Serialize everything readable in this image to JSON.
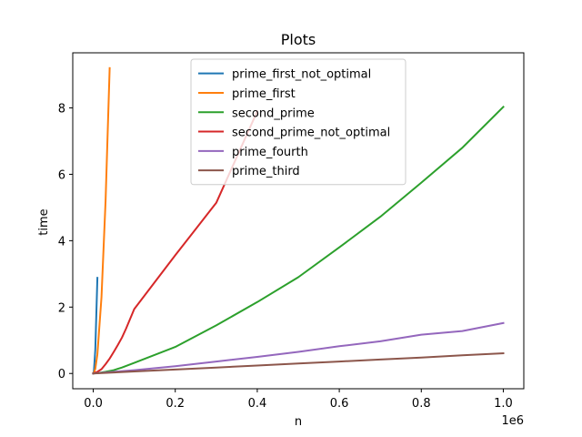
{
  "chart_data": {
    "type": "line",
    "title": "Plots",
    "xlabel": "n",
    "ylabel": "time",
    "x_offset_text": "1e6",
    "xlim": [
      -50000,
      1050000
    ],
    "ylim": [
      -0.46,
      9.66
    ],
    "x_ticks": [
      0,
      200000,
      400000,
      600000,
      800000,
      1000000
    ],
    "x_tick_labels": [
      "0.0",
      "0.2",
      "0.4",
      "0.6",
      "0.8",
      "1.0"
    ],
    "y_ticks": [
      0,
      2,
      4,
      6,
      8
    ],
    "y_tick_labels": [
      "0",
      "2",
      "4",
      "6",
      "8"
    ],
    "grid": false,
    "legend_position": "upper center",
    "series": [
      {
        "name": "prime_first_not_optimal",
        "color": "#1f77b4",
        "x": [
          0,
          1000,
          2000,
          5000,
          10000
        ],
        "y": [
          0,
          0.03,
          0.12,
          0.72,
          2.88
        ]
      },
      {
        "name": "prime_first",
        "color": "#ff7f0e",
        "x": [
          0,
          1000,
          5000,
          10000,
          20000,
          30000,
          40000
        ],
        "y": [
          0,
          0.006,
          0.14,
          0.58,
          2.3,
          5.2,
          9.2
        ]
      },
      {
        "name": "second_prime",
        "color": "#2ca02c",
        "x": [
          0,
          10000,
          30000,
          50000,
          70000,
          100000,
          200000,
          300000,
          400000,
          500000,
          600000,
          700000,
          800000,
          900000,
          1000000
        ],
        "y": [
          0,
          0.01,
          0.05,
          0.1,
          0.18,
          0.32,
          0.8,
          1.45,
          2.15,
          2.9,
          3.8,
          4.72,
          5.75,
          6.8,
          8.03
        ]
      },
      {
        "name": "second_prime_not_optimal",
        "color": "#d62728",
        "x": [
          0,
          10000,
          20000,
          30000,
          40000,
          50000,
          60000,
          70000,
          80000,
          100000,
          200000,
          300000,
          400000
        ],
        "y": [
          0,
          0.05,
          0.13,
          0.28,
          0.45,
          0.65,
          0.86,
          1.08,
          1.35,
          1.94,
          3.56,
          5.14,
          7.9
        ]
      },
      {
        "name": "prime_fourth",
        "color": "#9467bd",
        "x": [
          0,
          50000,
          100000,
          200000,
          300000,
          400000,
          500000,
          600000,
          700000,
          800000,
          900000,
          1000000
        ],
        "y": [
          0,
          0.05,
          0.1,
          0.22,
          0.36,
          0.5,
          0.65,
          0.82,
          0.97,
          1.17,
          1.28,
          1.52
        ]
      },
      {
        "name": "prime_third",
        "color": "#8c564b",
        "x": [
          0,
          100000,
          200000,
          300000,
          400000,
          500000,
          600000,
          700000,
          800000,
          900000,
          1000000
        ],
        "y": [
          0,
          0.06,
          0.12,
          0.18,
          0.24,
          0.3,
          0.36,
          0.42,
          0.48,
          0.55,
          0.61
        ]
      }
    ]
  }
}
